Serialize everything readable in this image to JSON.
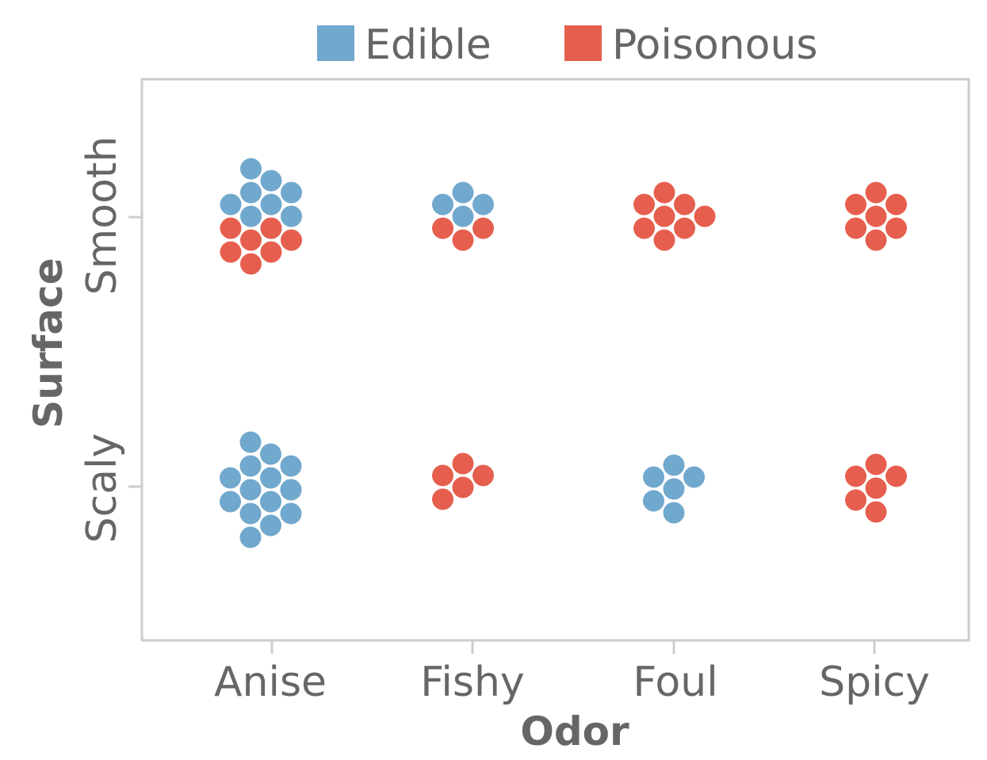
{
  "chart_data": {
    "type": "scatter",
    "subtype": "beeswarm",
    "xlabel": "Odor",
    "ylabel": "Surface",
    "x_categories": [
      "Anise",
      "Fishy",
      "Foul",
      "Spicy"
    ],
    "y_categories": [
      "Smooth",
      "Scaly"
    ],
    "legend": {
      "position": "top",
      "entries": [
        {
          "name": "Edible",
          "color": "#71a8cd"
        },
        {
          "name": "Poisonous",
          "color": "#e65f4e"
        }
      ]
    },
    "grid": false,
    "groups": [
      {
        "odor": "Anise",
        "surface": "Smooth",
        "Edible": 9,
        "Poisonous": 7
      },
      {
        "odor": "Fishy",
        "surface": "Smooth",
        "Edible": 4,
        "Poisonous": 3
      },
      {
        "odor": "Foul",
        "surface": "Smooth",
        "Edible": 0,
        "Poisonous": 8
      },
      {
        "odor": "Spicy",
        "surface": "Smooth",
        "Edible": 0,
        "Poisonous": 7
      },
      {
        "odor": "Anise",
        "surface": "Scaly",
        "Edible": 15,
        "Poisonous": 0
      },
      {
        "odor": "Fishy",
        "surface": "Scaly",
        "Edible": 0,
        "Poisonous": 5
      },
      {
        "odor": "Foul",
        "surface": "Scaly",
        "Edible": 6,
        "Poisonous": 0
      },
      {
        "odor": "Spicy",
        "surface": "Scaly",
        "Edible": 0,
        "Poisonous": 6
      }
    ]
  }
}
